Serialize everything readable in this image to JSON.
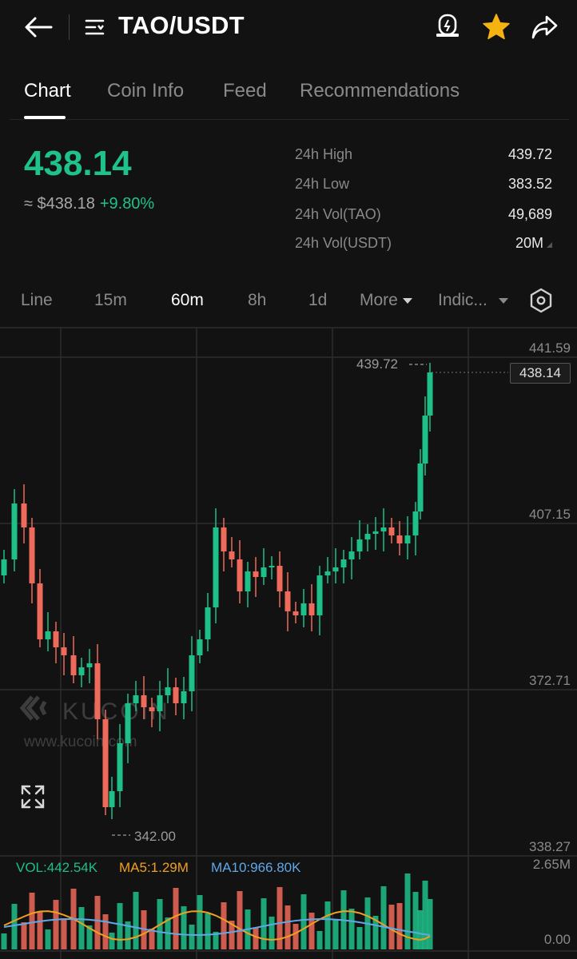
{
  "header": {
    "title": "TAO/USDT",
    "back_icon": "arrow-left-icon",
    "menu_icon": "pairs-menu-icon",
    "alert_icon": "price-alert-icon",
    "favorite_icon": "star-icon",
    "share_icon": "share-icon"
  },
  "tabs": [
    {
      "label": "Chart",
      "active": true
    },
    {
      "label": "Coin Info",
      "active": false
    },
    {
      "label": "Feed",
      "active": false
    },
    {
      "label": "Recommendations",
      "active": false
    }
  ],
  "price": {
    "last": "438.14",
    "usd": "≈ $438.18",
    "change": "+9.80%"
  },
  "stats": [
    {
      "label": "24h High",
      "value": "439.72"
    },
    {
      "label": "24h Low",
      "value": "383.52"
    },
    {
      "label": "24h Vol(TAO)",
      "value": "49,689"
    },
    {
      "label": "24h Vol(USDT)",
      "value": "20M"
    }
  ],
  "timeframes": {
    "items": [
      "Line",
      "15m",
      "60m",
      "8h",
      "1d"
    ],
    "active": "60m",
    "more": "More",
    "indicators": "Indic...",
    "settings_icon": "hexagon-settings-icon"
  },
  "chart": {
    "watermark_brand": "KUCOIN",
    "watermark_url": "www.kucoin.com",
    "price_axis": [
      "441.59",
      "407.15",
      "372.71",
      "338.27"
    ],
    "high_marker": "439.72",
    "low_marker": "342.00",
    "last_price_tag": "438.14",
    "fullscreen_icon": "expand-icon",
    "volume": {
      "vol": "VOL:442.54K",
      "ma5": "MA5:1.29M",
      "ma10": "MA10:966.80K",
      "axis_top": "2.65M",
      "axis_bottom": "0.00"
    },
    "colors": {
      "up": "#1fbf88",
      "down": "#ee6a5a",
      "ma5": "#f0a020",
      "ma10": "#5fa8e8"
    }
  }
}
